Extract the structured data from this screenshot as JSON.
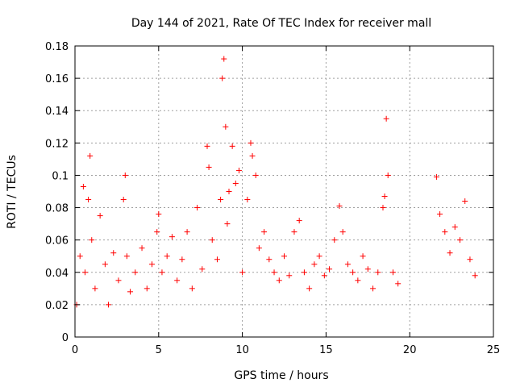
{
  "chart_data": {
    "type": "scatter",
    "title": "Day 144 of 2021, Rate Of TEC Index for receiver mall",
    "xlabel": "GPS time / hours",
    "ylabel": "ROTI / TECUs",
    "xlim": [
      0,
      25
    ],
    "ylim": [
      0,
      0.18
    ],
    "xticks": [
      0,
      5,
      10,
      15,
      20,
      25
    ],
    "yticks": [
      0,
      0.02,
      0.04,
      0.06,
      0.08,
      0.1,
      0.12,
      0.14,
      0.16,
      0.18
    ],
    "xtick_labels": [
      "0",
      "5",
      "10",
      "15",
      "20",
      "25"
    ],
    "ytick_labels": [
      "0",
      "0.02",
      "0.04",
      "0.06",
      "0.08",
      "0.1",
      "0.12",
      "0.14",
      "0.16",
      "0.18"
    ],
    "grid": true,
    "marker": "+",
    "color": "#ff0000",
    "series": [
      {
        "x": [
          0.1,
          0.3,
          0.5,
          0.6,
          0.8,
          0.9,
          1.0,
          1.2,
          1.5,
          1.8,
          2.0,
          2.3,
          2.6,
          2.9,
          3.0,
          3.1,
          3.3,
          3.6,
          4.0,
          4.3,
          4.6,
          4.9,
          5.0,
          5.2,
          5.5,
          5.8,
          6.1,
          6.4,
          6.7,
          7.0,
          7.3,
          7.6,
          7.9,
          8.0,
          8.2,
          8.5,
          8.7,
          8.8,
          8.9,
          9.0,
          9.1,
          9.2,
          9.4,
          9.6,
          9.8,
          10.0,
          10.3,
          10.5,
          10.6,
          10.8,
          11.0,
          11.3,
          11.6,
          11.9,
          12.2,
          12.5,
          12.8,
          13.1,
          13.4,
          13.7,
          14.0,
          14.3,
          14.6,
          14.9,
          15.2,
          15.5,
          15.8,
          16.0,
          16.3,
          16.6,
          16.9,
          17.2,
          17.5,
          17.8,
          18.1,
          18.4,
          18.5,
          18.6,
          18.7,
          19.0,
          19.3,
          21.6,
          21.8,
          22.1,
          22.4,
          22.7,
          23.0,
          23.3,
          23.6,
          23.9
        ],
        "y": [
          0.02,
          0.05,
          0.093,
          0.04,
          0.085,
          0.112,
          0.06,
          0.03,
          0.075,
          0.045,
          0.02,
          0.052,
          0.035,
          0.085,
          0.1,
          0.05,
          0.028,
          0.04,
          0.055,
          0.03,
          0.045,
          0.065,
          0.076,
          0.04,
          0.05,
          0.062,
          0.035,
          0.048,
          0.065,
          0.03,
          0.08,
          0.042,
          0.118,
          0.105,
          0.06,
          0.048,
          0.085,
          0.16,
          0.172,
          0.13,
          0.07,
          0.09,
          0.118,
          0.095,
          0.103,
          0.04,
          0.085,
          0.12,
          0.112,
          0.1,
          0.055,
          0.065,
          0.048,
          0.04,
          0.035,
          0.05,
          0.038,
          0.065,
          0.072,
          0.04,
          0.03,
          0.045,
          0.05,
          0.038,
          0.042,
          0.06,
          0.081,
          0.065,
          0.045,
          0.04,
          0.035,
          0.05,
          0.042,
          0.03,
          0.04,
          0.08,
          0.087,
          0.135,
          0.1,
          0.04,
          0.033,
          0.099,
          0.076,
          0.065,
          0.052,
          0.068,
          0.06,
          0.084,
          0.048,
          0.038
        ]
      }
    ]
  }
}
